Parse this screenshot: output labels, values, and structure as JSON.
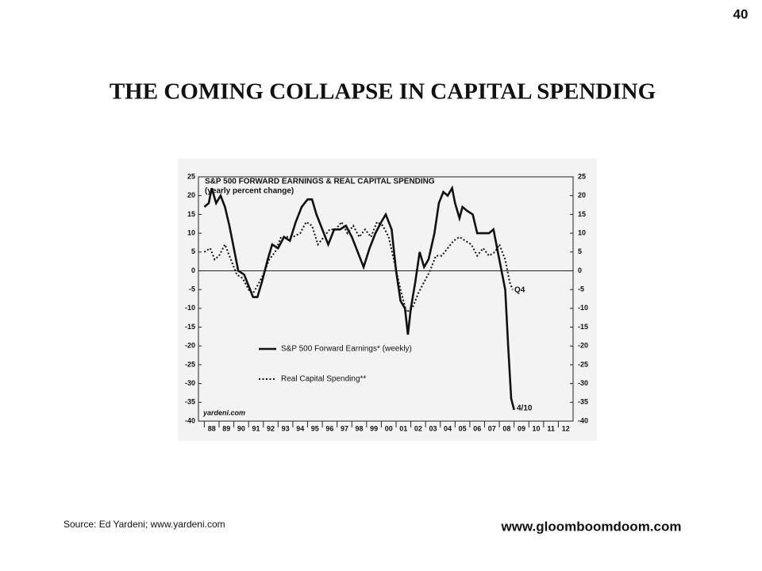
{
  "page_number": "40",
  "title": "THE COMING COLLAPSE IN CAPITAL SPENDING",
  "source": "Source: Ed Yardeni; www.yardeni.com",
  "website": "www.gloomboomdoom.com",
  "chart_data": {
    "type": "line",
    "title": "S&P 500 FORWARD EARNINGS & REAL CAPITAL SPENDING",
    "subtitle": "(yearly percent change)",
    "annotations": [
      "Q4",
      "4/10",
      "yardeni.com"
    ],
    "xlim": [
      1987.6,
      2013.0
    ],
    "xticks": [
      {
        "value": 1988,
        "label": "88"
      },
      {
        "value": 1989,
        "label": "89"
      },
      {
        "value": 1990,
        "label": "90"
      },
      {
        "value": 1991,
        "label": "91"
      },
      {
        "value": 1992,
        "label": "92"
      },
      {
        "value": 1993,
        "label": "93"
      },
      {
        "value": 1994,
        "label": "94"
      },
      {
        "value": 1995,
        "label": "95"
      },
      {
        "value": 1996,
        "label": "96"
      },
      {
        "value": 1997,
        "label": "97"
      },
      {
        "value": 1998,
        "label": "98"
      },
      {
        "value": 1999,
        "label": "99"
      },
      {
        "value": 2000,
        "label": "00"
      },
      {
        "value": 2001,
        "label": "01"
      },
      {
        "value": 2002,
        "label": "02"
      },
      {
        "value": 2003,
        "label": "03"
      },
      {
        "value": 2004,
        "label": "04"
      },
      {
        "value": 2005,
        "label": "05"
      },
      {
        "value": 2006,
        "label": "06"
      },
      {
        "value": 2007,
        "label": "07"
      },
      {
        "value": 2008,
        "label": "08"
      },
      {
        "value": 2009,
        "label": "09"
      },
      {
        "value": 2010,
        "label": "10"
      },
      {
        "value": 2011,
        "label": "11"
      },
      {
        "value": 2012,
        "label": "12"
      }
    ],
    "ylim": [
      -40,
      25
    ],
    "yticks": [
      -40,
      -35,
      -30,
      -25,
      -20,
      -15,
      -10,
      -5,
      0,
      5,
      10,
      15,
      20,
      25
    ],
    "y2lim": [
      -40,
      25
    ],
    "y2ticks": [
      -40,
      -35,
      -30,
      -25,
      -20,
      -15,
      -10,
      -5,
      0,
      5,
      10,
      15,
      20,
      25
    ],
    "zero_line": true,
    "series": [
      {
        "name": "S&P 500 Forward Earnings* (weekly)",
        "color": "#111111",
        "dash": false,
        "x": [
          1988.0,
          1988.3,
          1988.5,
          1988.8,
          1989.1,
          1989.4,
          1989.7,
          1990.0,
          1990.3,
          1990.7,
          1991.0,
          1991.3,
          1991.6,
          1991.9,
          1992.3,
          1992.6,
          1993.0,
          1993.4,
          1993.8,
          1994.2,
          1994.6,
          1995.0,
          1995.3,
          1995.6,
          1996.0,
          1996.4,
          1996.8,
          1997.2,
          1997.6,
          1998.0,
          1998.4,
          1998.8,
          1999.2,
          1999.6,
          2000.0,
          2000.3,
          2000.7,
          2001.0,
          2001.3,
          2001.6,
          2001.8,
          2002.0,
          2002.3,
          2002.6,
          2002.9,
          2003.2,
          2003.6,
          2003.9,
          2004.2,
          2004.5,
          2004.8,
          2005.0,
          2005.3,
          2005.5,
          2005.8,
          2006.2,
          2006.5,
          2006.9,
          2007.3,
          2007.6,
          2007.9,
          2008.2,
          2008.4,
          2008.6,
          2008.8,
          2009.0
        ],
        "values": [
          17,
          18,
          22,
          18,
          20,
          17,
          12,
          6,
          0,
          -1,
          -4,
          -7,
          -7,
          -3,
          3,
          7,
          6,
          9,
          8,
          13,
          17,
          19,
          19,
          15,
          11,
          7,
          11,
          11,
          12,
          9,
          5,
          1,
          6,
          10,
          13,
          15,
          11,
          0,
          -8,
          -10,
          -17,
          -10,
          -3,
          5,
          1,
          3,
          10,
          18,
          21,
          20,
          22,
          18,
          14,
          17,
          16,
          15,
          10,
          10,
          10,
          11,
          5,
          -1,
          -5,
          -20,
          -34,
          -37
        ]
      },
      {
        "name": "Real Capital Spending**",
        "color": "#111111",
        "dash": true,
        "x": [
          1988.0,
          1988.4,
          1988.7,
          1989.0,
          1989.4,
          1989.8,
          1990.2,
          1990.6,
          1991.0,
          1991.3,
          1991.6,
          1992.0,
          1992.4,
          1992.8,
          1993.2,
          1993.6,
          1994.0,
          1994.5,
          1994.9,
          1995.3,
          1995.7,
          1996.1,
          1996.5,
          1996.9,
          1997.3,
          1997.7,
          1998.1,
          1998.5,
          1998.9,
          1999.3,
          1999.7,
          2000.1,
          2000.5,
          2000.9,
          2001.3,
          2001.7,
          2002.1,
          2002.5,
          2002.9,
          2003.3,
          2003.7,
          2004.1,
          2004.5,
          2004.9,
          2005.3,
          2005.7,
          2006.1,
          2006.5,
          2006.9,
          2007.3,
          2007.7,
          2008.0,
          2008.4,
          2008.7,
          2008.9
        ],
        "values": [
          5,
          6,
          3,
          4,
          7,
          3,
          -1,
          -2,
          -5,
          -6,
          -4,
          -1,
          3,
          5,
          9,
          9,
          9,
          10,
          13,
          12,
          7,
          9,
          11,
          11,
          13,
          10,
          12,
          9,
          11,
          9,
          13,
          12,
          9,
          2,
          -5,
          -11,
          -10,
          -6,
          -3,
          0,
          4,
          4,
          6,
          8,
          9,
          8,
          7,
          4,
          6,
          4,
          5,
          7,
          3,
          -3,
          -5
        ]
      }
    ]
  }
}
